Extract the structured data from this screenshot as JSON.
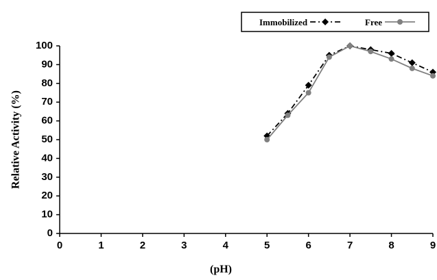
{
  "chart_data": {
    "type": "line",
    "x_label": "(pH)",
    "y_label": "Relative Activity (%)",
    "x": [
      5,
      5.5,
      6,
      6.5,
      7,
      7.5,
      8,
      8.5,
      9
    ],
    "series": [
      {
        "name": "Immobilized",
        "color": "#000000",
        "values": [
          52,
          64,
          79,
          95,
          100,
          98,
          96,
          91,
          86
        ]
      },
      {
        "name": "Free",
        "color": "#808080",
        "values": [
          50,
          63,
          75,
          94,
          100,
          97,
          93,
          88,
          84
        ]
      }
    ],
    "xlim": [
      0,
      9
    ],
    "xticks": [
      0,
      1,
      2,
      3,
      4,
      5,
      6,
      7,
      8,
      9
    ],
    "ylim": [
      0,
      100
    ],
    "yticks": [
      0,
      10,
      20,
      30,
      40,
      50,
      60,
      70,
      80,
      90,
      100
    ],
    "legend": "top-right"
  }
}
